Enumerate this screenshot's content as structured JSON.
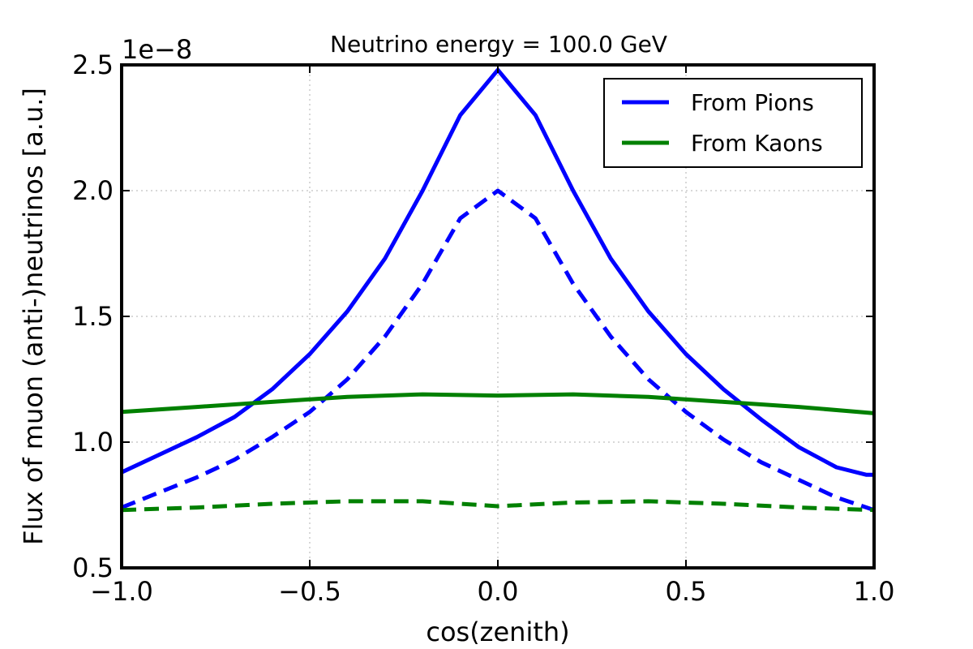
{
  "chart_data": {
    "type": "line",
    "title": "Neutrino energy = 100.0 GeV",
    "xlabel": "cos(zenith)",
    "ylabel": "Flux of muon (anti-)neutrinos [a.u.]",
    "y_offset_label": "1e−8",
    "xlim": [
      -1.0,
      1.0
    ],
    "ylim": [
      0.5,
      2.5
    ],
    "grid": true,
    "legend_position": "top-right",
    "x_ticks": [
      -1.0,
      -0.5,
      0.0,
      0.5,
      1.0
    ],
    "x_tick_labels": [
      "−1.0",
      "−0.5",
      "0.0",
      "0.5",
      "1.0"
    ],
    "y_ticks": [
      0.5,
      1.0,
      1.5,
      2.0,
      2.5
    ],
    "y_tick_labels": [
      "0.5",
      "1.0",
      "1.5",
      "2.0",
      "2.5"
    ],
    "series": [
      {
        "name": "From Pions",
        "color": "#0000ff",
        "style": "solid",
        "x": [
          -1.0,
          -0.9,
          -0.8,
          -0.7,
          -0.6,
          -0.5,
          -0.4,
          -0.3,
          -0.2,
          -0.1,
          0.0,
          0.1,
          0.2,
          0.3,
          0.4,
          0.5,
          0.6,
          0.7,
          0.8,
          0.9,
          0.98,
          1.0
        ],
        "y": [
          0.88,
          0.95,
          1.02,
          1.1,
          1.21,
          1.35,
          1.52,
          1.73,
          2.0,
          2.3,
          2.48,
          2.3,
          2.0,
          1.73,
          1.52,
          1.35,
          1.21,
          1.09,
          0.98,
          0.9,
          0.87,
          0.87
        ]
      },
      {
        "name": "",
        "color": "#0000ff",
        "style": "dashed",
        "x": [
          -1.0,
          -0.9,
          -0.8,
          -0.7,
          -0.6,
          -0.5,
          -0.4,
          -0.3,
          -0.2,
          -0.1,
          0.0,
          0.1,
          0.2,
          0.3,
          0.4,
          0.5,
          0.6,
          0.7,
          0.8,
          0.9,
          1.0
        ],
        "y": [
          0.74,
          0.8,
          0.86,
          0.93,
          1.02,
          1.12,
          1.25,
          1.42,
          1.63,
          1.89,
          2.0,
          1.89,
          1.63,
          1.42,
          1.25,
          1.12,
          1.01,
          0.92,
          0.85,
          0.78,
          0.73
        ]
      },
      {
        "name": "From Kaons",
        "color": "#008000",
        "style": "solid",
        "x": [
          -1.0,
          -0.8,
          -0.6,
          -0.4,
          -0.2,
          0.0,
          0.2,
          0.4,
          0.6,
          0.8,
          1.0
        ],
        "y": [
          1.12,
          1.14,
          1.16,
          1.18,
          1.19,
          1.185,
          1.19,
          1.18,
          1.16,
          1.14,
          1.115
        ]
      },
      {
        "name": "",
        "color": "#008000",
        "style": "dashed",
        "x": [
          -1.0,
          -0.8,
          -0.6,
          -0.4,
          -0.2,
          0.0,
          0.2,
          0.4,
          0.6,
          0.8,
          1.0
        ],
        "y": [
          0.73,
          0.74,
          0.755,
          0.765,
          0.765,
          0.745,
          0.76,
          0.765,
          0.755,
          0.74,
          0.73
        ]
      }
    ]
  }
}
